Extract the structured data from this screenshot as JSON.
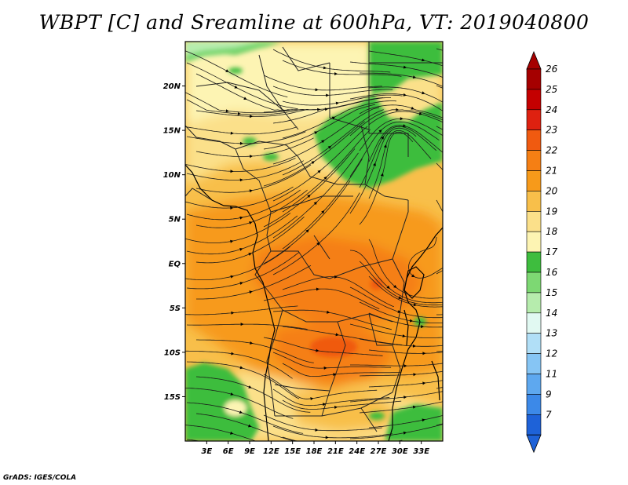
{
  "title": "WBPT [C] and Sreamline at 600hPa, VT: 2019040800",
  "footer": "GrADS: IGES/COLA",
  "map": {
    "lon_range": [
      0,
      36
    ],
    "lat_range": [
      -20,
      25
    ],
    "lon_ticks": [
      {
        "value": 3,
        "label": "3E"
      },
      {
        "value": 6,
        "label": "6E"
      },
      {
        "value": 9,
        "label": "9E"
      },
      {
        "value": 12,
        "label": "12E"
      },
      {
        "value": 15,
        "label": "15E"
      },
      {
        "value": 18,
        "label": "18E"
      },
      {
        "value": 21,
        "label": "21E"
      },
      {
        "value": 24,
        "label": "24E"
      },
      {
        "value": 27,
        "label": "27E"
      },
      {
        "value": 30,
        "label": "30E"
      },
      {
        "value": 33,
        "label": "33E"
      }
    ],
    "lat_ticks": [
      {
        "value": 20,
        "label": "20N"
      },
      {
        "value": 15,
        "label": "15N"
      },
      {
        "value": 10,
        "label": "10N"
      },
      {
        "value": 5,
        "label": "5N"
      },
      {
        "value": 0,
        "label": "EQ"
      },
      {
        "value": -5,
        "label": "5S"
      },
      {
        "value": -10,
        "label": "10S"
      },
      {
        "value": -15,
        "label": "15S"
      }
    ]
  },
  "colorbar": {
    "levels": [
      {
        "label": "26",
        "color": "#a50000"
      },
      {
        "label": "25",
        "color": "#c40000"
      },
      {
        "label": "24",
        "color": "#de2110"
      },
      {
        "label": "23",
        "color": "#f05a10"
      },
      {
        "label": "22",
        "color": "#f57f14"
      },
      {
        "label": "21",
        "color": "#f79a1a"
      },
      {
        "label": "20",
        "color": "#f8bf4a"
      },
      {
        "label": "19",
        "color": "#fbe08a"
      },
      {
        "label": "18",
        "color": "#fdf4b3"
      },
      {
        "label": "17",
        "color": "#3ebd3e"
      },
      {
        "label": "16",
        "color": "#7dd873"
      },
      {
        "label": "15",
        "color": "#b6ecad"
      },
      {
        "label": "14",
        "color": "#e1f9f2"
      },
      {
        "label": "13",
        "color": "#b1dff7"
      },
      {
        "label": "12",
        "color": "#86c5f4"
      },
      {
        "label": "11",
        "color": "#5ea8ef"
      },
      {
        "label": "9",
        "color": "#3c89e8"
      },
      {
        "label": "7",
        "color": "#1e62d8"
      }
    ],
    "bottom_color": "#1e62d8",
    "top_color": "#a50000"
  }
}
